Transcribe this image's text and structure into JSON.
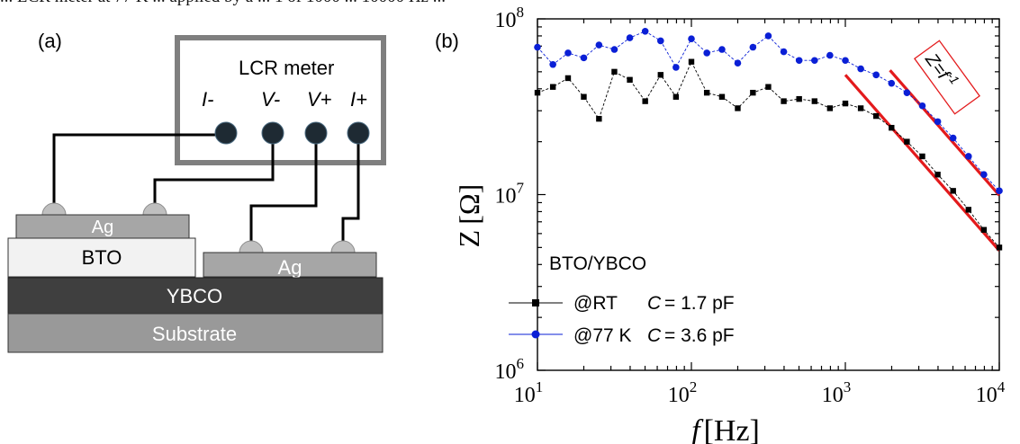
{
  "top_text": "... LCR meter at 77 K ... applied by a ... 1 of 1000 ... 10000 Hz ...",
  "panel_a": {
    "label": "(a)",
    "meter_title": "LCR meter",
    "terminals": [
      "I-",
      "V-",
      "V+",
      "I+"
    ],
    "layers": {
      "ag_left": "Ag",
      "bto": "BTO",
      "ag_right": "Ag",
      "ybco": "YBCO",
      "substrate": "Substrate"
    },
    "colors": {
      "meter_border": "#7f7f7f",
      "terminal": "#1e2a33",
      "ag": "#a6a6a6",
      "bto": "#f2f2f2",
      "ybco": "#3f3f3f",
      "substrate": "#999999",
      "wire": "#000000"
    }
  },
  "panel_b": {
    "label": "(b)"
  },
  "chart_data": {
    "type": "line",
    "x_scale": "log",
    "y_scale": "log",
    "xlim": [
      10,
      10000
    ],
    "ylim": [
      1000000,
      100000000
    ],
    "xlabel_symbol": "f",
    "xlabel_unit": "[Hz]",
    "ylabel_symbol": "Z",
    "ylabel_unit": "[Ω]",
    "x_ticks": [
      {
        "value": 10,
        "base": "10",
        "exp": "1"
      },
      {
        "value": 100,
        "base": "10",
        "exp": "2"
      },
      {
        "value": 1000,
        "base": "10",
        "exp": "3"
      },
      {
        "value": 10000,
        "base": "10",
        "exp": "4"
      }
    ],
    "y_ticks": [
      {
        "value": 1000000,
        "base": "10",
        "exp": "6"
      },
      {
        "value": 10000000,
        "base": "10",
        "exp": "7"
      },
      {
        "value": 100000000,
        "base": "10",
        "exp": "8"
      }
    ],
    "legend_title": "BTO/YBCO",
    "legend_placement": "bottom-left",
    "series": [
      {
        "name": "@RT",
        "legend_param": "C",
        "legend_value": "= 1.7 pF",
        "color": "#000000",
        "marker": "square",
        "x": [
          10,
          12.6,
          15.8,
          20,
          25.1,
          31.6,
          39.8,
          50.1,
          63.1,
          79.4,
          100,
          126,
          158,
          200,
          251,
          316,
          398,
          501,
          631,
          794,
          1000,
          1259,
          1585,
          1995,
          2512,
          3162,
          3981,
          5012,
          6310,
          7943,
          10000
        ],
        "y": [
          38000000,
          41000000,
          46000000,
          36000000,
          27000000,
          50000000,
          45000000,
          34000000,
          48000000,
          36000000,
          57000000,
          38000000,
          36000000,
          31000000,
          38000000,
          41000000,
          34000000,
          35000000,
          34000000,
          31000000,
          33000000,
          31000000,
          28000000,
          24000000,
          20000000,
          16500000,
          13000000,
          10500000,
          8200000,
          6300000,
          5000000
        ]
      },
      {
        "name": "@77 K",
        "legend_param": "C",
        "legend_value": "= 3.6 pF",
        "color": "#0a1fd6",
        "marker": "circle",
        "x": [
          10,
          12.6,
          15.8,
          20,
          25.1,
          31.6,
          39.8,
          50.1,
          63.1,
          79.4,
          100,
          126,
          158,
          200,
          251,
          316,
          398,
          501,
          631,
          794,
          1000,
          1259,
          1585,
          1995,
          2512,
          3162,
          3981,
          5012,
          6310,
          7943,
          10000
        ],
        "y": [
          69000000,
          55000000,
          64000000,
          60000000,
          71000000,
          67000000,
          78000000,
          85000000,
          75000000,
          53000000,
          77000000,
          64000000,
          67000000,
          56000000,
          69000000,
          80000000,
          65000000,
          58000000,
          58000000,
          62000000,
          58000000,
          52000000,
          48000000,
          43000000,
          38000000,
          32000000,
          26000000,
          21000000,
          16500000,
          13000000,
          10500000
        ]
      }
    ],
    "fit_lines": [
      {
        "x": [
          1000,
          10000
        ],
        "y": [
          48000000,
          4800000
        ],
        "color": "#e31a1c"
      },
      {
        "x": [
          1950,
          10000
        ],
        "y": [
          51000000,
          9900000
        ],
        "color": "#e31a1c"
      }
    ],
    "annotation": {
      "base": "Z=f",
      "exp": "-1",
      "color": "#e31a1c"
    }
  }
}
